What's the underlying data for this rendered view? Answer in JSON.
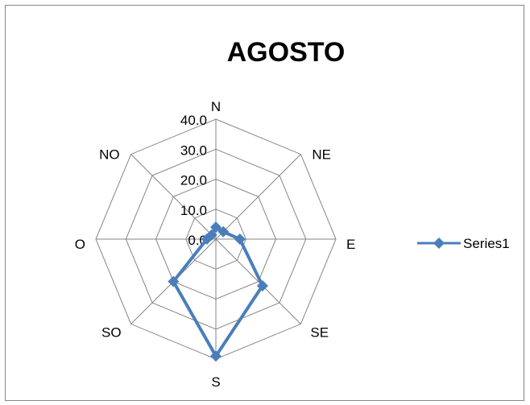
{
  "chart_data": {
    "type": "radar",
    "title": "AGOSTO",
    "categories": [
      "N",
      "NE",
      "E",
      "SE",
      "S",
      "SO",
      "O",
      "NO"
    ],
    "series": [
      {
        "name": "Series1",
        "values": [
          4.0,
          3.5,
          8.0,
          22.0,
          39.0,
          20.0,
          3.0,
          2.0
        ]
      }
    ],
    "rlim": [
      0,
      40
    ],
    "ticks": [
      "0.0",
      "10.0",
      "20.0",
      "30.0",
      "40.0"
    ],
    "tick_values": [
      0,
      10,
      20,
      30,
      40
    ],
    "grid": true,
    "legend_position": "right",
    "colors": {
      "series": "#4A7EBB",
      "grid": "#868686",
      "border": "#868686"
    }
  }
}
